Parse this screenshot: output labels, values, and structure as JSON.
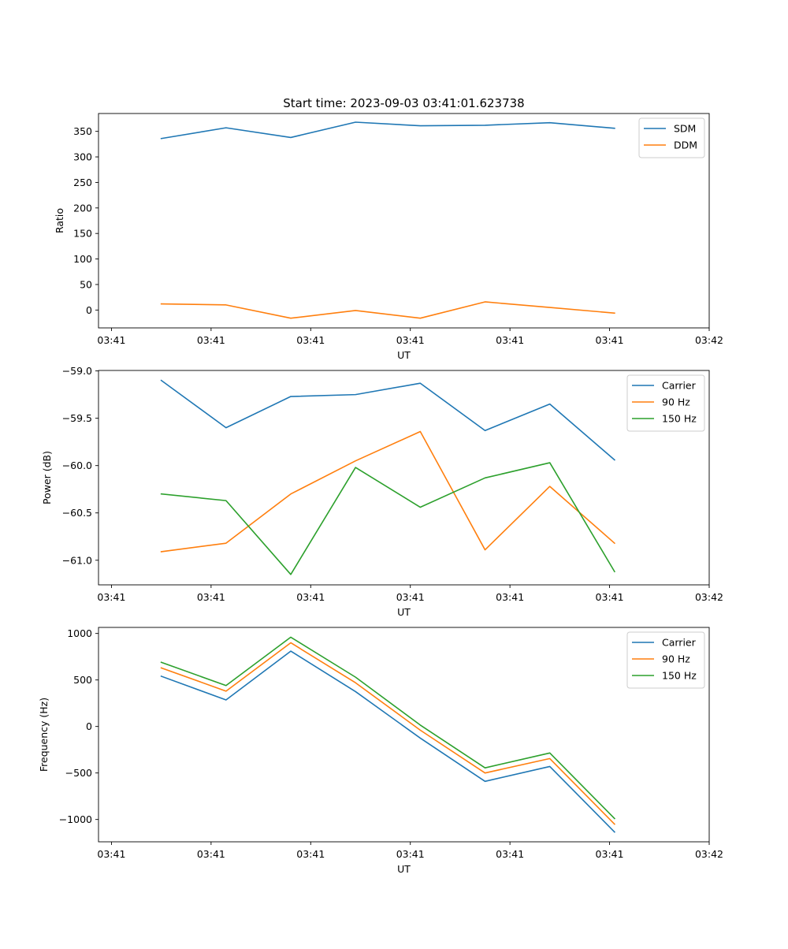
{
  "title": "Start time: 2023-09-03 03:41:01.623738",
  "chart_data": [
    {
      "type": "line",
      "xlabel": "UT",
      "ylabel": "Ratio",
      "ylim": [
        -35,
        385
      ],
      "xlim": [
        -0.13,
        6.0
      ],
      "x": [
        0.5,
        1.15,
        1.8,
        2.45,
        3.1,
        3.75,
        4.4,
        5.05
      ],
      "x_ticks": [
        0,
        1,
        2,
        3,
        4,
        5,
        6
      ],
      "x_tick_labels": [
        "03:41",
        "03:41",
        "03:41",
        "03:41",
        "03:41",
        "03:41",
        "03:42"
      ],
      "y_ticks": [
        0,
        50,
        100,
        150,
        200,
        250,
        300,
        350
      ],
      "y_tick_labels": [
        "0",
        "50",
        "100",
        "150",
        "200",
        "250",
        "300",
        "350"
      ],
      "legend": "top-right",
      "series": [
        {
          "name": "SDM",
          "color": "#1f77b4",
          "values": [
            336,
            357,
            338,
            368,
            361,
            362,
            367,
            356
          ]
        },
        {
          "name": "DDM",
          "color": "#ff7f0e",
          "values": [
            12,
            10,
            -16,
            -1,
            -16,
            16,
            5,
            -6
          ]
        }
      ]
    },
    {
      "type": "line",
      "xlabel": "UT",
      "ylabel": "Power (dB)",
      "ylim": [
        -61.26,
        -58.995
      ],
      "xlim": [
        -0.13,
        6.0
      ],
      "x": [
        0.5,
        1.15,
        1.8,
        2.45,
        3.1,
        3.75,
        4.4,
        5.05
      ],
      "x_ticks": [
        0,
        1,
        2,
        3,
        4,
        5,
        6
      ],
      "x_tick_labels": [
        "03:41",
        "03:41",
        "03:41",
        "03:41",
        "03:41",
        "03:41",
        "03:42"
      ],
      "y_ticks": [
        -59.0,
        -59.5,
        -60.0,
        -60.5,
        -61.0
      ],
      "y_tick_labels": [
        "−59.0",
        "−59.5",
        "−60.0",
        "−60.5",
        "−61.0"
      ],
      "legend": "top-right",
      "series": [
        {
          "name": "Carrier",
          "color": "#1f77b4",
          "values": [
            -59.1,
            -59.6,
            -59.27,
            -59.25,
            -59.13,
            -59.63,
            -59.35,
            -59.94
          ]
        },
        {
          "name": "90 Hz",
          "color": "#ff7f0e",
          "values": [
            -60.91,
            -60.82,
            -60.3,
            -59.95,
            -59.64,
            -60.89,
            -60.22,
            -60.82
          ]
        },
        {
          "name": "150 Hz",
          "color": "#2ca02c",
          "values": [
            -60.3,
            -60.37,
            -61.15,
            -60.02,
            -60.44,
            -60.13,
            -59.97,
            -61.12
          ]
        }
      ]
    },
    {
      "type": "line",
      "xlabel": "UT",
      "ylabel": "Frequency (Hz)",
      "ylim": [
        -1240,
        1065
      ],
      "xlim": [
        -0.13,
        6.0
      ],
      "x": [
        0.5,
        1.15,
        1.8,
        2.45,
        3.1,
        3.75,
        4.4,
        5.05
      ],
      "x_ticks": [
        0,
        1,
        2,
        3,
        4,
        5,
        6
      ],
      "x_tick_labels": [
        "03:41",
        "03:41",
        "03:41",
        "03:41",
        "03:41",
        "03:41",
        "03:42"
      ],
      "y_ticks": [
        1000,
        500,
        0,
        -500,
        -1000
      ],
      "y_tick_labels": [
        "1000",
        "500",
        "0",
        "−500",
        "−1000"
      ],
      "legend": "top-right",
      "series": [
        {
          "name": "Carrier",
          "color": "#1f77b4",
          "values": [
            540,
            285,
            810,
            375,
            -125,
            -590,
            -430,
            -1135
          ]
        },
        {
          "name": "90 Hz",
          "color": "#ff7f0e",
          "values": [
            630,
            380,
            900,
            470,
            -40,
            -500,
            -345,
            -1050
          ]
        },
        {
          "name": "150 Hz",
          "color": "#2ca02c",
          "values": [
            690,
            440,
            960,
            530,
            15,
            -445,
            -285,
            -990
          ]
        }
      ]
    }
  ]
}
